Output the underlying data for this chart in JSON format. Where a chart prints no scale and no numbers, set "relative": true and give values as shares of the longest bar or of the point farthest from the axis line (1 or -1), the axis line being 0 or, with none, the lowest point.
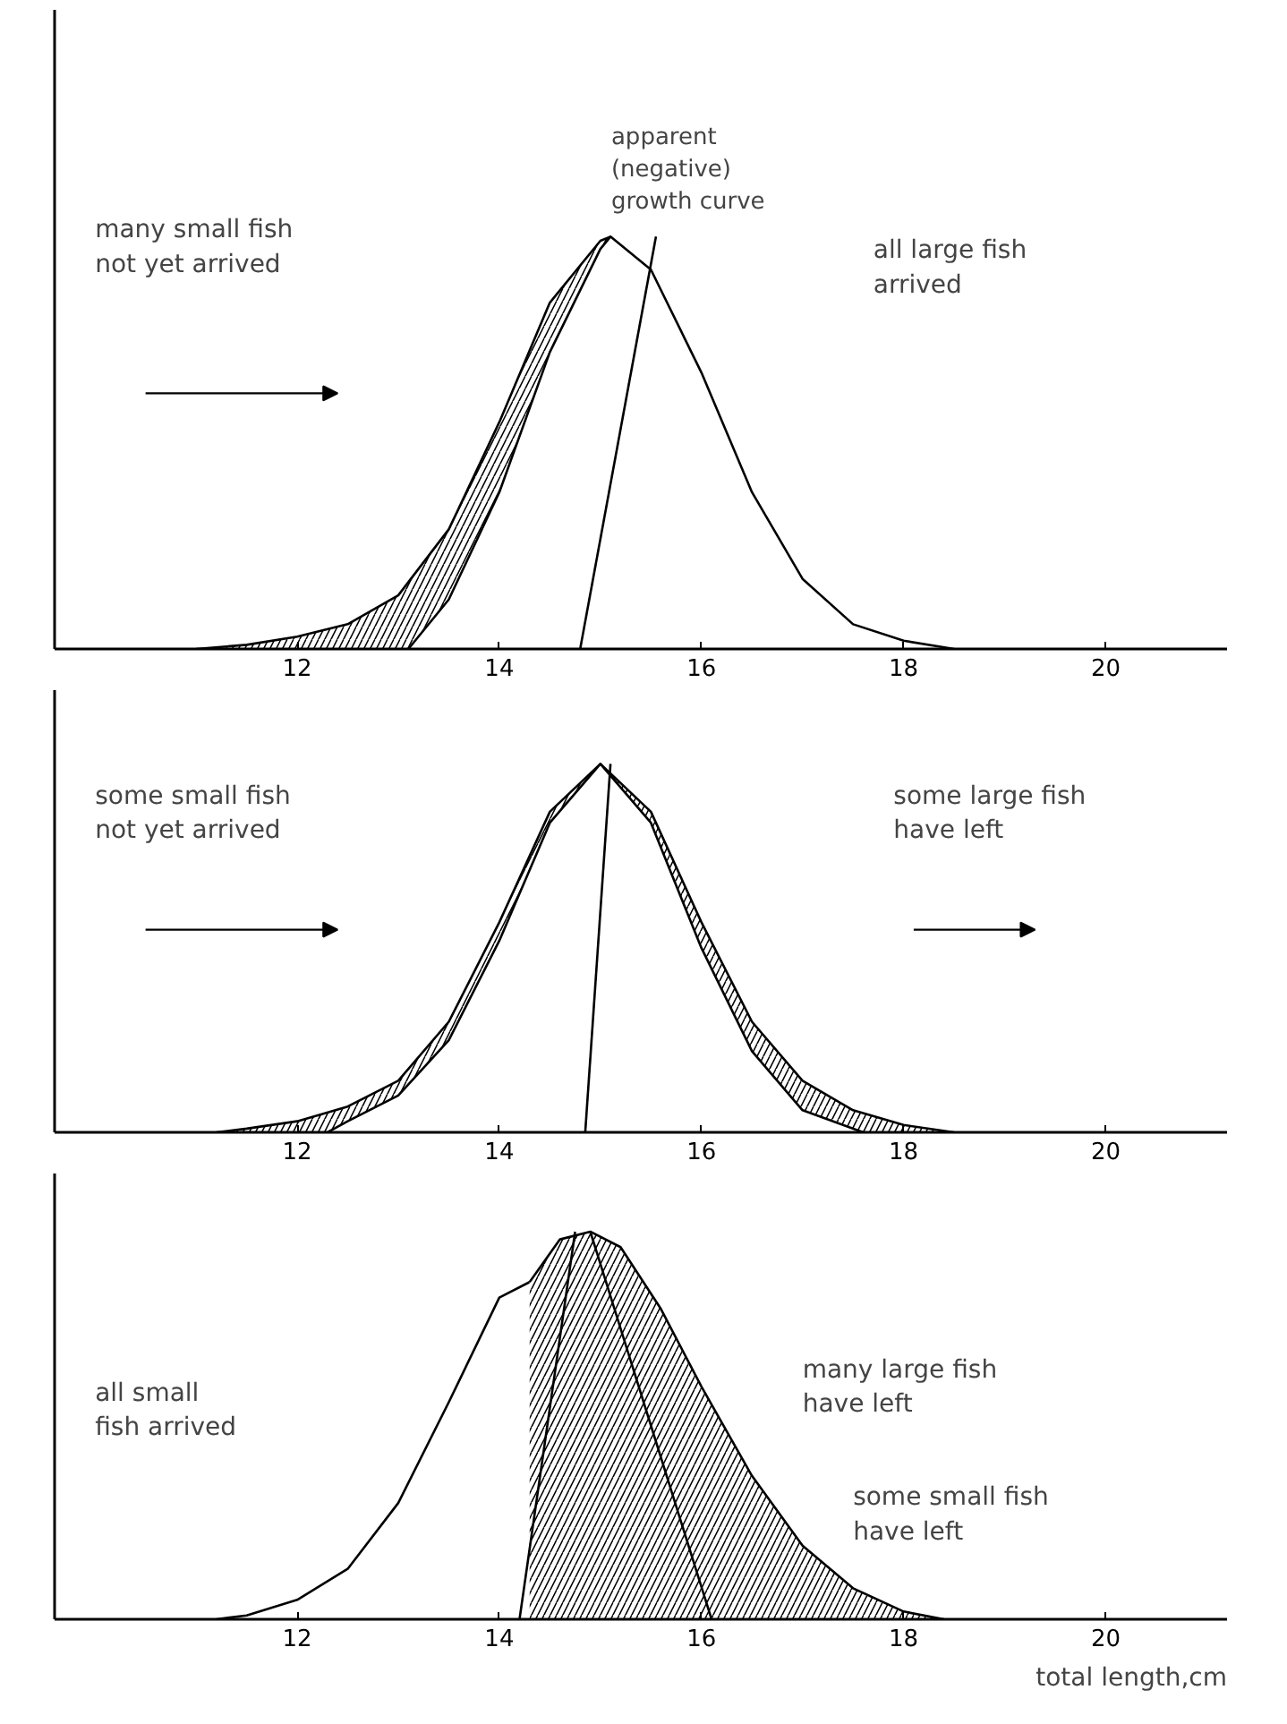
{
  "chart_data": [
    {
      "type": "area",
      "relative": true,
      "xlim": [
        9.6,
        21.2
      ],
      "xticks": [
        12,
        14,
        16,
        18,
        20
      ],
      "annotations": [
        "many small fish\nnot yet arrived",
        "all large fish\narrived"
      ],
      "series": [
        {
          "color": "#000000",
          "x": [
            11.0,
            11.5,
            12,
            12.5,
            13,
            13.5,
            14,
            14.5,
            15,
            15.1
          ],
          "values": [
            0,
            0.01,
            0.03,
            0.06,
            0.13,
            0.29,
            0.55,
            0.84,
            0.99,
            1
          ]
        },
        {
          "color": "#ffffff",
          "x": [
            13.1,
            13.5,
            14,
            14.5,
            15,
            15.1,
            15.5,
            16,
            16.5,
            17,
            17.5,
            18,
            18.5
          ],
          "values": [
            0,
            0.12,
            0.38,
            0.72,
            0.97,
            1,
            0.92,
            0.67,
            0.38,
            0.17,
            0.06,
            0.02,
            0
          ]
        },
        {
          "type": "line",
          "name": "apparent\n(negative)\ngrowth curve",
          "color": "#000000",
          "x": [
            14.8,
            15.55
          ],
          "values": [
            0,
            1
          ]
        }
      ]
    },
    {
      "type": "area",
      "relative": true,
      "xlim": [
        9.6,
        21.2
      ],
      "xticks": [
        12,
        14,
        16,
        18,
        20
      ],
      "annotations": [
        "some small fish\nnot yet arrived",
        "some large fish\nhave left"
      ],
      "series": [
        {
          "color": "#000000",
          "x": [
            11.2,
            11.5,
            12,
            12.5,
            13,
            13.5,
            14,
            14.5,
            15,
            15.5,
            16,
            16.5,
            17,
            17.5,
            18,
            18.5
          ],
          "values": [
            0,
            0.01,
            0.03,
            0.07,
            0.14,
            0.3,
            0.57,
            0.87,
            1,
            0.87,
            0.57,
            0.3,
            0.14,
            0.06,
            0.02,
            0
          ]
        },
        {
          "color": "#ffffff",
          "x": [
            12.3,
            12.5,
            13,
            13.5,
            14,
            14.5,
            15,
            15.5,
            16,
            16.5,
            17,
            17.6
          ],
          "values": [
            0,
            0.03,
            0.1,
            0.25,
            0.52,
            0.84,
            1,
            0.84,
            0.5,
            0.22,
            0.06,
            0
          ]
        },
        {
          "type": "line",
          "color": "#000000",
          "x": [
            14.85,
            15.1
          ],
          "values": [
            0,
            1
          ]
        }
      ]
    },
    {
      "type": "area",
      "relative": true,
      "xlim": [
        9.6,
        21.2
      ],
      "xticks": [
        12,
        14,
        16,
        18,
        20
      ],
      "xlabel": "total length,cm",
      "annotations": [
        "all small\nfish arrived",
        "many large fish\nhave left",
        "some small fish\nhave left"
      ],
      "series": [
        {
          "color": "#ffffff",
          "x": [
            11.2,
            11.5,
            12,
            12.5,
            13,
            13.5,
            14,
            14.3
          ],
          "values": [
            0,
            0.01,
            0.05,
            0.13,
            0.3,
            0.56,
            0.83,
            0.87
          ]
        },
        {
          "color": "#000000",
          "x": [
            14.3,
            14.6,
            14.9,
            15.2,
            15.6,
            16,
            16.5,
            17,
            17.5,
            18,
            18.4
          ],
          "values": [
            0.87,
            0.98,
            1,
            0.96,
            0.8,
            0.6,
            0.37,
            0.19,
            0.08,
            0.02,
            0
          ]
        },
        {
          "type": "line",
          "color": "#000000",
          "x": [
            14.9,
            16.1
          ],
          "values": [
            1,
            0
          ]
        },
        {
          "type": "line",
          "color": "#000000",
          "x": [
            14.2,
            14.75
          ],
          "values": [
            0,
            1
          ]
        }
      ]
    }
  ]
}
